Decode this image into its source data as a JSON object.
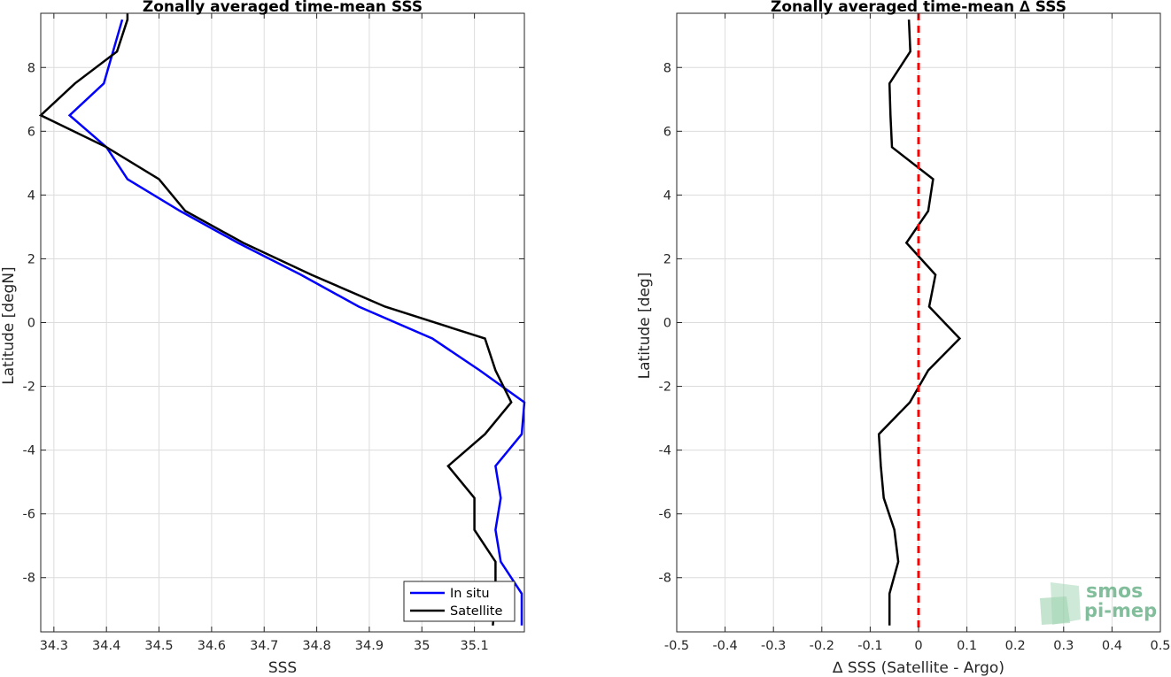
{
  "chart_data": [
    {
      "type": "line",
      "title": "Zonally averaged time-mean SSS",
      "xlabel": "SSS",
      "ylabel": "Latitude [degN]",
      "xlim": [
        34.275,
        35.195
      ],
      "ylim": [
        -9.7,
        9.7
      ],
      "xticks": [
        34.3,
        34.4,
        34.5,
        34.6,
        34.7,
        34.8,
        34.9,
        35,
        35.1
      ],
      "xtick_labels": [
        "34.3",
        "34.4",
        "34.5",
        "34.6",
        "34.7",
        "34.8",
        "34.9",
        "35",
        "35.1"
      ],
      "yticks": [
        8,
        6,
        4,
        2,
        0,
        -2,
        -4,
        -6,
        -8
      ],
      "ytick_labels": [
        "8",
        "6",
        "4",
        "2",
        "0",
        "-2",
        "-4",
        "-6",
        "-8"
      ],
      "grid": true,
      "legend": "bottom-right",
      "series": [
        {
          "name": "In situ",
          "color": "#0000ff",
          "points": [
            [
              34.43,
              9.5
            ],
            [
              34.395,
              7.5
            ],
            [
              34.33,
              6.5
            ],
            [
              34.4,
              5.5
            ],
            [
              34.44,
              4.5
            ],
            [
              34.54,
              3.5
            ],
            [
              34.65,
              2.5
            ],
            [
              34.77,
              1.5
            ],
            [
              34.88,
              0.5
            ],
            [
              35.02,
              -0.5
            ],
            [
              35.11,
              -1.5
            ],
            [
              35.195,
              -2.5
            ],
            [
              35.19,
              -3.5
            ],
            [
              35.14,
              -4.5
            ],
            [
              35.15,
              -5.5
            ],
            [
              35.14,
              -6.5
            ],
            [
              35.15,
              -7.5
            ],
            [
              35.19,
              -8.5
            ],
            [
              35.19,
              -9.5
            ]
          ]
        },
        {
          "name": "Satellite",
          "color": "#000000",
          "points": [
            [
              34.44,
              9.7
            ],
            [
              34.44,
              9.5
            ],
            [
              34.42,
              8.5
            ],
            [
              34.34,
              7.5
            ],
            [
              34.275,
              6.5
            ],
            [
              34.4,
              5.5
            ],
            [
              34.5,
              4.5
            ],
            [
              34.55,
              3.5
            ],
            [
              34.66,
              2.5
            ],
            [
              34.79,
              1.5
            ],
            [
              34.93,
              0.5
            ],
            [
              35.12,
              -0.5
            ],
            [
              35.14,
              -1.5
            ],
            [
              35.17,
              -2.5
            ],
            [
              35.12,
              -3.5
            ],
            [
              35.05,
              -4.5
            ],
            [
              35.1,
              -5.5
            ],
            [
              35.1,
              -6.5
            ],
            [
              35.14,
              -7.5
            ],
            [
              35.14,
              -8.5
            ],
            [
              35.135,
              -9.5
            ]
          ]
        }
      ]
    },
    {
      "type": "line",
      "title": "Zonally averaged time-mean ∆ SSS",
      "xlabel": "∆ SSS (Satellite - Argo)",
      "ylabel": "Latitude [deg]",
      "xlim": [
        -0.5,
        0.5
      ],
      "ylim": [
        -9.7,
        9.7
      ],
      "xticks": [
        -0.5,
        -0.4,
        -0.3,
        -0.2,
        -0.1,
        0,
        0.1,
        0.2,
        0.3,
        0.4,
        0.5
      ],
      "xtick_labels": [
        "-0.5",
        "-0.4",
        "-0.3",
        "-0.2",
        "-0.1",
        "0",
        "0.1",
        "0.2",
        "0.3",
        "0.4",
        "0.5"
      ],
      "yticks": [
        8,
        6,
        4,
        2,
        0,
        -2,
        -4,
        -6,
        -8
      ],
      "ytick_labels": [
        "8",
        "6",
        "4",
        "2",
        "0",
        "-2",
        "-4",
        "-6",
        "-8"
      ],
      "grid": true,
      "reference_line": {
        "x": 0,
        "color": "#ff0000",
        "style": "dashed"
      },
      "series": [
        {
          "color": "#000000",
          "points": [
            [
              -0.02,
              9.5
            ],
            [
              -0.017,
              8.5
            ],
            [
              -0.06,
              7.5
            ],
            [
              -0.058,
              6.5
            ],
            [
              -0.055,
              5.5
            ],
            [
              0.03,
              4.5
            ],
            [
              0.02,
              3.5
            ],
            [
              -0.025,
              2.5
            ],
            [
              0.035,
              1.5
            ],
            [
              0.022,
              0.5
            ],
            [
              0.085,
              -0.5
            ],
            [
              0.02,
              -1.5
            ],
            [
              -0.018,
              -2.5
            ],
            [
              -0.082,
              -3.5
            ],
            [
              -0.078,
              -4.5
            ],
            [
              -0.072,
              -5.5
            ],
            [
              -0.05,
              -6.5
            ],
            [
              -0.042,
              -7.5
            ],
            [
              -0.06,
              -8.5
            ],
            [
              -0.06,
              -9.5
            ]
          ]
        }
      ]
    }
  ],
  "watermark": {
    "line1": "smos",
    "line2": "pi-mep"
  }
}
